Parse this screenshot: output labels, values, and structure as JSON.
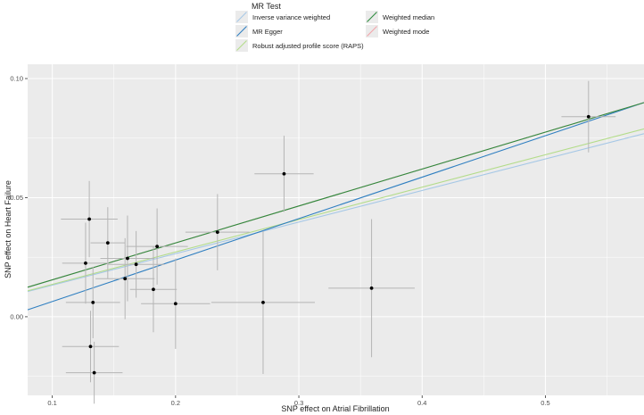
{
  "chart_data": {
    "type": "scatter",
    "xlabel": "SNP effect on Atrial Fibrillation",
    "ylabel": "SNP effect on Heart Failure",
    "xlim": [
      0.08,
      0.58
    ],
    "ylim": [
      -0.033,
      0.106
    ],
    "x_ticks": [
      0.1,
      0.2,
      0.3,
      0.4,
      0.5
    ],
    "x_tick_labels": [
      "0.1",
      "0.2",
      "0.3",
      "0.4",
      "0.5"
    ],
    "y_ticks": [
      0.0,
      0.05,
      0.1
    ],
    "y_tick_labels": [
      "0.00",
      "0.05",
      "0.10"
    ],
    "grid": true,
    "background": "#ebebeb",
    "legend": {
      "title": "MR Test",
      "placement": "top",
      "entries": [
        {
          "label": "Inverse variance weighted",
          "color": "#a6c8e6"
        },
        {
          "label": "MR Egger",
          "color": "#2f7fc1"
        },
        {
          "label": "Robust adjusted profile score (RAPS)",
          "color": "#b3dc8a"
        },
        {
          "label": "Weighted median",
          "color": "#2e8b3e"
        },
        {
          "label": "Weighted mode",
          "color": "#f2a3aa"
        }
      ]
    },
    "lines": [
      {
        "label": "Inverse variance weighted",
        "color": "#a6c8e6",
        "intercept": 0,
        "slope": 0.1325
      },
      {
        "label": "Robust adjusted profile score (RAPS)",
        "color": "#b3dc8a",
        "intercept": 0,
        "slope": 0.136
      },
      {
        "label": "MR Egger",
        "color": "#2f7fc1",
        "intercept": -0.011,
        "slope": 0.174
      },
      {
        "label": "Weighted mode",
        "color": "#f2a3aa",
        "intercept": 0,
        "slope": 0.155
      },
      {
        "label": "Weighted median",
        "color": "#2e8b3e",
        "intercept": 0,
        "slope": 0.155
      }
    ],
    "points": [
      {
        "x": 0.13,
        "y": 0.041,
        "xerr": 0.023,
        "yerr": 0.016
      },
      {
        "x": 0.127,
        "y": 0.0225,
        "xerr": 0.019,
        "yerr": 0.017
      },
      {
        "x": 0.145,
        "y": 0.031,
        "xerr": 0.014,
        "yerr": 0.015
      },
      {
        "x": 0.133,
        "y": 0.006,
        "xerr": 0.022,
        "yerr": 0.015
      },
      {
        "x": 0.131,
        "y": -0.0125,
        "xerr": 0.023,
        "yerr": 0.015
      },
      {
        "x": 0.134,
        "y": -0.0235,
        "xerr": 0.023,
        "yerr": 0.013
      },
      {
        "x": 0.161,
        "y": 0.0245,
        "xerr": 0.022,
        "yerr": 0.018
      },
      {
        "x": 0.159,
        "y": 0.016,
        "xerr": 0.024,
        "yerr": 0.017
      },
      {
        "x": 0.168,
        "y": 0.022,
        "xerr": 0.023,
        "yerr": 0.014
      },
      {
        "x": 0.185,
        "y": 0.0295,
        "xerr": 0.025,
        "yerr": 0.016
      },
      {
        "x": 0.182,
        "y": 0.0115,
        "xerr": 0.019,
        "yerr": 0.018
      },
      {
        "x": 0.2,
        "y": 0.0055,
        "xerr": 0.028,
        "yerr": 0.019
      },
      {
        "x": 0.234,
        "y": 0.0355,
        "xerr": 0.026,
        "yerr": 0.016
      },
      {
        "x": 0.271,
        "y": 0.006,
        "xerr": 0.042,
        "yerr": 0.03
      },
      {
        "x": 0.288,
        "y": 0.06,
        "xerr": 0.024,
        "yerr": 0.016
      },
      {
        "x": 0.359,
        "y": 0.012,
        "xerr": 0.035,
        "yerr": 0.029
      },
      {
        "x": 0.535,
        "y": 0.084,
        "xerr": 0.022,
        "yerr": 0.015
      }
    ]
  }
}
